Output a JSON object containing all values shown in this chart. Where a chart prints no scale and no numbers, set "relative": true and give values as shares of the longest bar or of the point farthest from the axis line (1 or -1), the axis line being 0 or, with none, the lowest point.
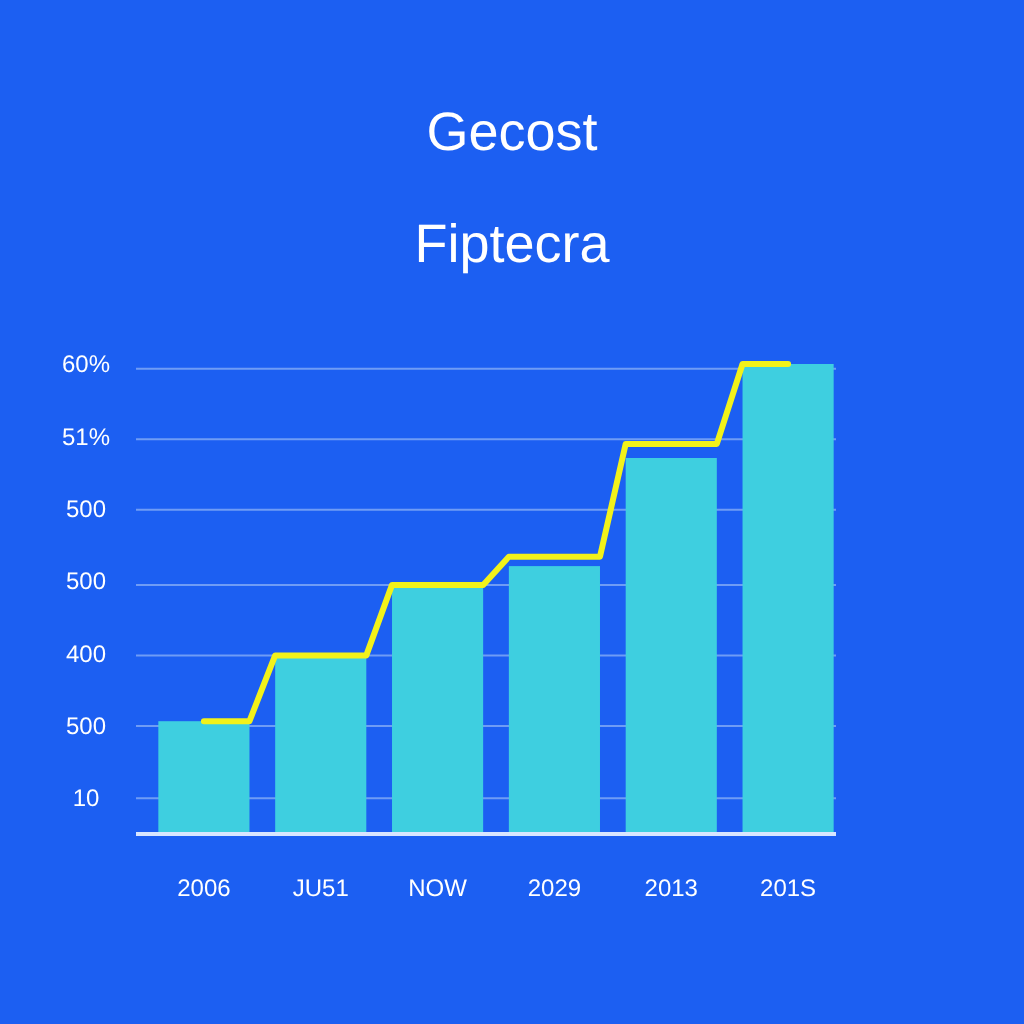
{
  "chart_data": {
    "type": "bar",
    "title": "Gecost",
    "subtitle": "Fiptecra",
    "relative": true,
    "categories": [
      "2006",
      "JU51",
      "NOW",
      "2029",
      "2013",
      "201S"
    ],
    "series": [
      {
        "color": "#3ecfe0",
        "values": [
          0.24,
          0.38,
          0.53,
          0.57,
          0.8,
          1
        ]
      },
      {
        "type": "step",
        "color": "#f2f21a",
        "values": [
          0.24,
          0.38,
          0.53,
          0.59,
          0.83,
          1
        ]
      }
    ],
    "ref_lines": [
      {
        "axis": "y",
        "value": 0.076,
        "color": "#6f9cf5"
      },
      {
        "axis": "y",
        "value": 0.23,
        "color": "#6f9cf5"
      },
      {
        "axis": "y",
        "value": 0.38,
        "color": "#6f9cf5"
      },
      {
        "axis": "y",
        "value": 0.53,
        "color": "#6f9cf5"
      },
      {
        "axis": "y",
        "value": 0.69,
        "color": "#6f9cf5"
      },
      {
        "axis": "y",
        "value": 0.84,
        "color": "#6f9cf5"
      },
      {
        "axis": "y",
        "value": 0.99,
        "color": "#6f9cf5"
      }
    ],
    "annotations": [
      "10",
      "500",
      "400",
      "500",
      "500",
      "51%",
      "60%"
    ]
  }
}
